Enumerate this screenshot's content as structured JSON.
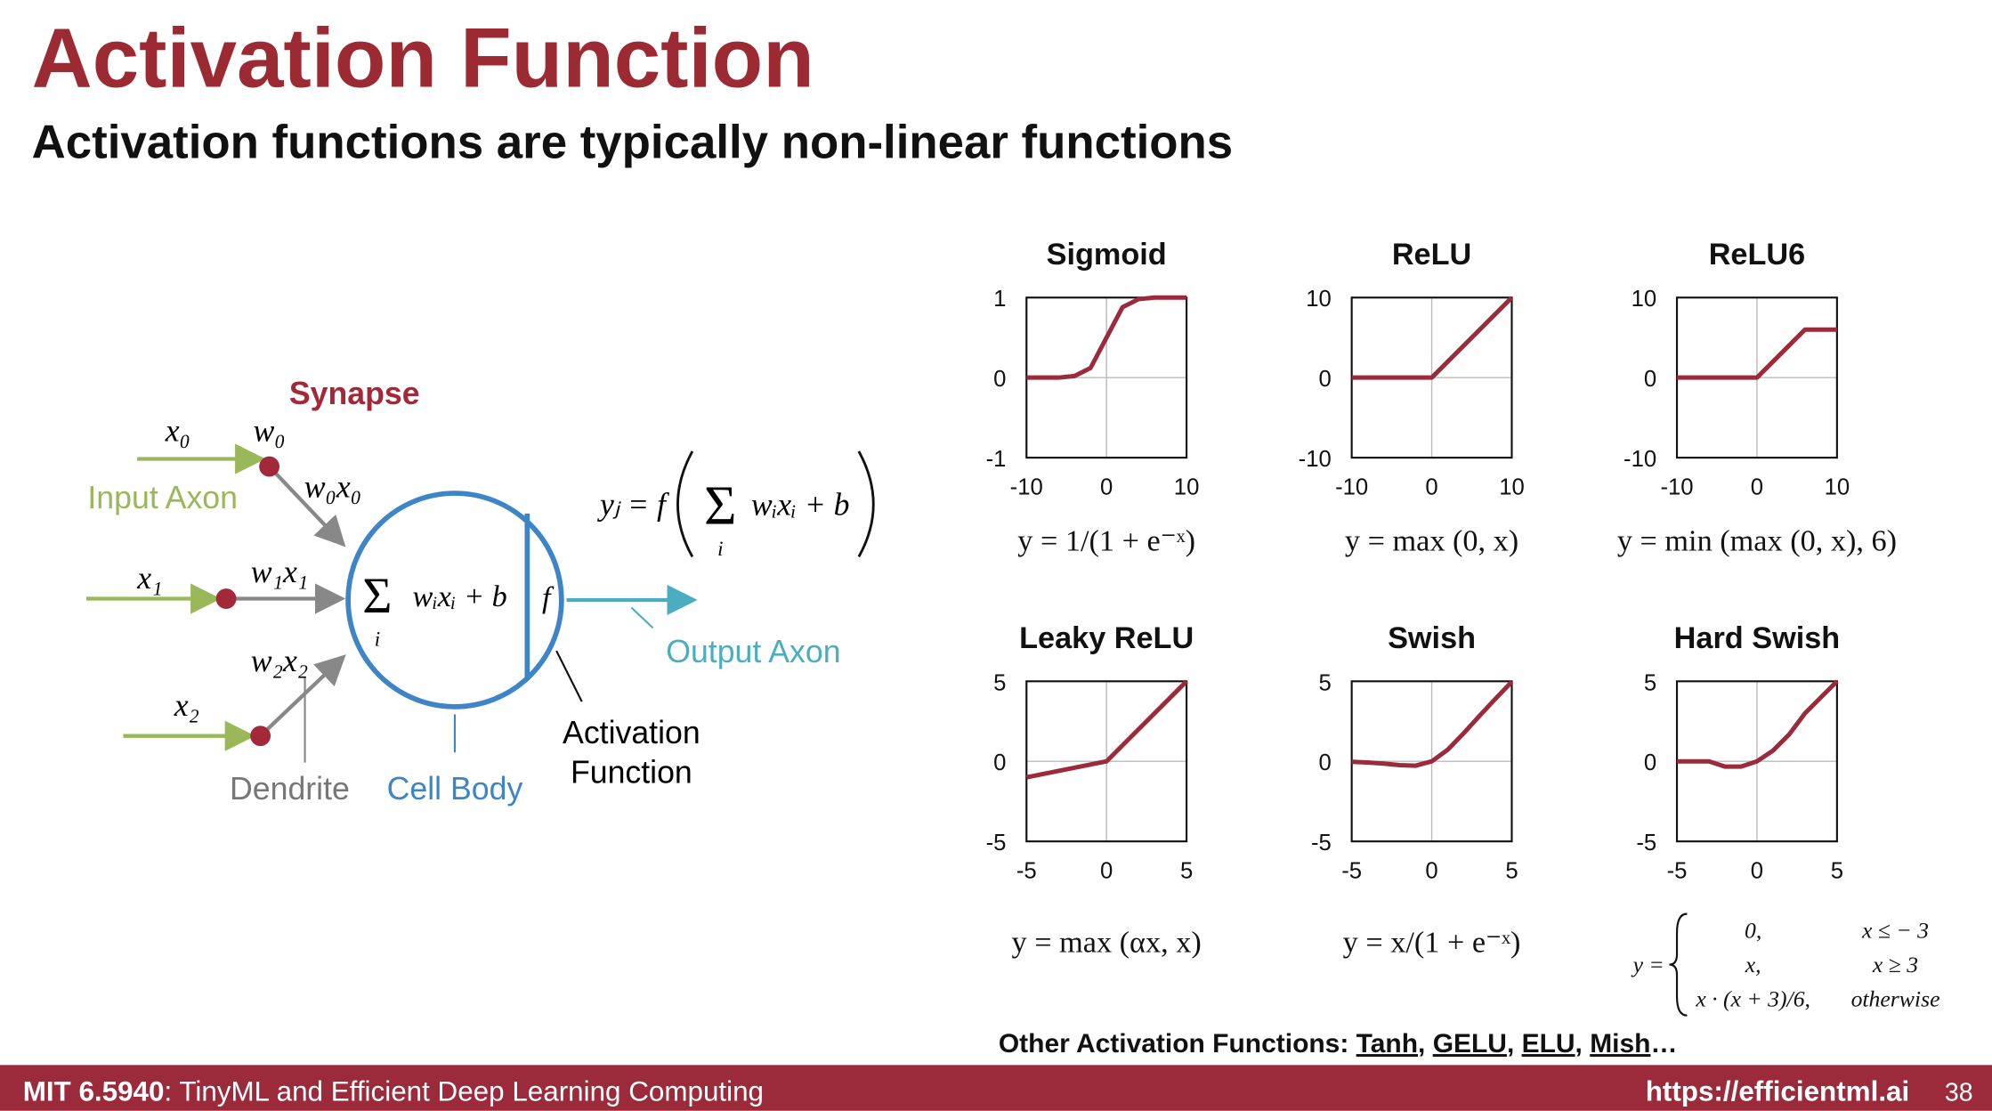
{
  "header": {
    "title": "Activation Function",
    "subtitle": "Activation functions are typically non-linear functions"
  },
  "neuron": {
    "synapse": "Synapse",
    "x0": "x₀",
    "w0": "w₀",
    "w0x0": "w₀x₀",
    "x1": "x₁",
    "w1x1": "w₁x₁",
    "x2": "x₂",
    "w2x2": "w₂x₂",
    "input_axon": "Input Axon",
    "output_axon": "Output Axon",
    "dendrite": "Dendrite",
    "cell_body": "Cell Body",
    "activation_function": [
      "Activation",
      "Function"
    ],
    "cell_sum": "Σ",
    "cell_index": "i",
    "cell_expr": "wᵢxᵢ + b",
    "cell_f": "f",
    "output_lhs": "yⱼ = f",
    "output_sum": "Σ",
    "output_index": "i",
    "output_expr": "wᵢxᵢ + b"
  },
  "chart_data": [
    {
      "type": "line",
      "title": "Sigmoid",
      "formula": "y = 1/(1 + e⁻ˣ)",
      "color": "#9b2a3a",
      "x": [
        -10,
        -8,
        -6,
        -4,
        -2,
        0,
        2,
        4,
        6,
        8,
        10
      ],
      "values": [
        0,
        0,
        0,
        0.02,
        0.12,
        0.5,
        0.88,
        0.98,
        1,
        1,
        1
      ],
      "xlim": [
        -10,
        10
      ],
      "ylim": [
        -1,
        1
      ],
      "xticks": [
        -10,
        0,
        10
      ],
      "yticks": [
        -1,
        0,
        1
      ],
      "grid": true
    },
    {
      "type": "line",
      "title": "ReLU",
      "formula": "y = max (0, x)",
      "color": "#9b2a3a",
      "x": [
        -10,
        0,
        10
      ],
      "values": [
        0,
        0,
        10
      ],
      "xlim": [
        -10,
        10
      ],
      "ylim": [
        -10,
        10
      ],
      "xticks": [
        -10,
        0,
        10
      ],
      "yticks": [
        -10,
        0,
        10
      ],
      "grid": true
    },
    {
      "type": "line",
      "title": "ReLU6",
      "formula": "y = min (max (0, x), 6)",
      "color": "#9b2a3a",
      "x": [
        -10,
        0,
        6,
        10
      ],
      "values": [
        0,
        0,
        6,
        6
      ],
      "xlim": [
        -10,
        10
      ],
      "ylim": [
        -10,
        10
      ],
      "xticks": [
        -10,
        0,
        10
      ],
      "yticks": [
        -10,
        0,
        10
      ],
      "grid": true
    },
    {
      "type": "line",
      "title": "Leaky ReLU",
      "formula": "y = max (αx, x)",
      "color": "#9b2a3a",
      "x": [
        -5,
        0,
        5
      ],
      "values": [
        -1,
        0,
        5
      ],
      "xlim": [
        -5,
        5
      ],
      "ylim": [
        -5,
        5
      ],
      "xticks": [
        -5,
        0,
        5
      ],
      "yticks": [
        -5,
        0,
        5
      ],
      "grid": true
    },
    {
      "type": "line",
      "title": "Swish",
      "formula": "y = x/(1 + e⁻ˣ)",
      "color": "#9b2a3a",
      "x": [
        -5,
        -4,
        -3,
        -2,
        -1,
        0,
        1,
        2,
        3,
        4,
        5
      ],
      "values": [
        -0.03,
        -0.07,
        -0.14,
        -0.24,
        -0.27,
        0,
        0.73,
        1.76,
        2.86,
        3.93,
        4.97
      ],
      "xlim": [
        -5,
        5
      ],
      "ylim": [
        -5,
        5
      ],
      "xticks": [
        -5,
        0,
        5
      ],
      "yticks": [
        -5,
        0,
        5
      ],
      "grid": true
    },
    {
      "type": "line",
      "title": "Hard Swish",
      "color": "#9b2a3a",
      "formula": {
        "lhs": "y =",
        "cases": [
          [
            "0,",
            "x ≤ − 3"
          ],
          [
            "x,",
            "x ≥ 3"
          ],
          [
            "x · (x + 3)/6,",
            "otherwise"
          ]
        ]
      },
      "x": [
        -5,
        -4,
        -3,
        -2,
        -1,
        0,
        1,
        2,
        3,
        4,
        5
      ],
      "values": [
        0,
        0,
        0,
        -0.33,
        -0.33,
        0,
        0.67,
        1.67,
        3,
        4,
        5
      ],
      "xlim": [
        -5,
        5
      ],
      "ylim": [
        -5,
        5
      ],
      "xticks": [
        -5,
        0,
        5
      ],
      "yticks": [
        -5,
        0,
        5
      ],
      "grid": true
    }
  ],
  "other_functions": {
    "label": "Other Activation Functions: ",
    "links": [
      "Tanh",
      "GELU",
      "ELU",
      "Mish"
    ],
    "separator": ", ",
    "ellipsis": "…"
  },
  "footer": {
    "course_code": "MIT 6.5940",
    "course_name": ": TinyML and Efficient Deep Learning Computing",
    "url": "https://efficientml.ai",
    "page": "38"
  }
}
